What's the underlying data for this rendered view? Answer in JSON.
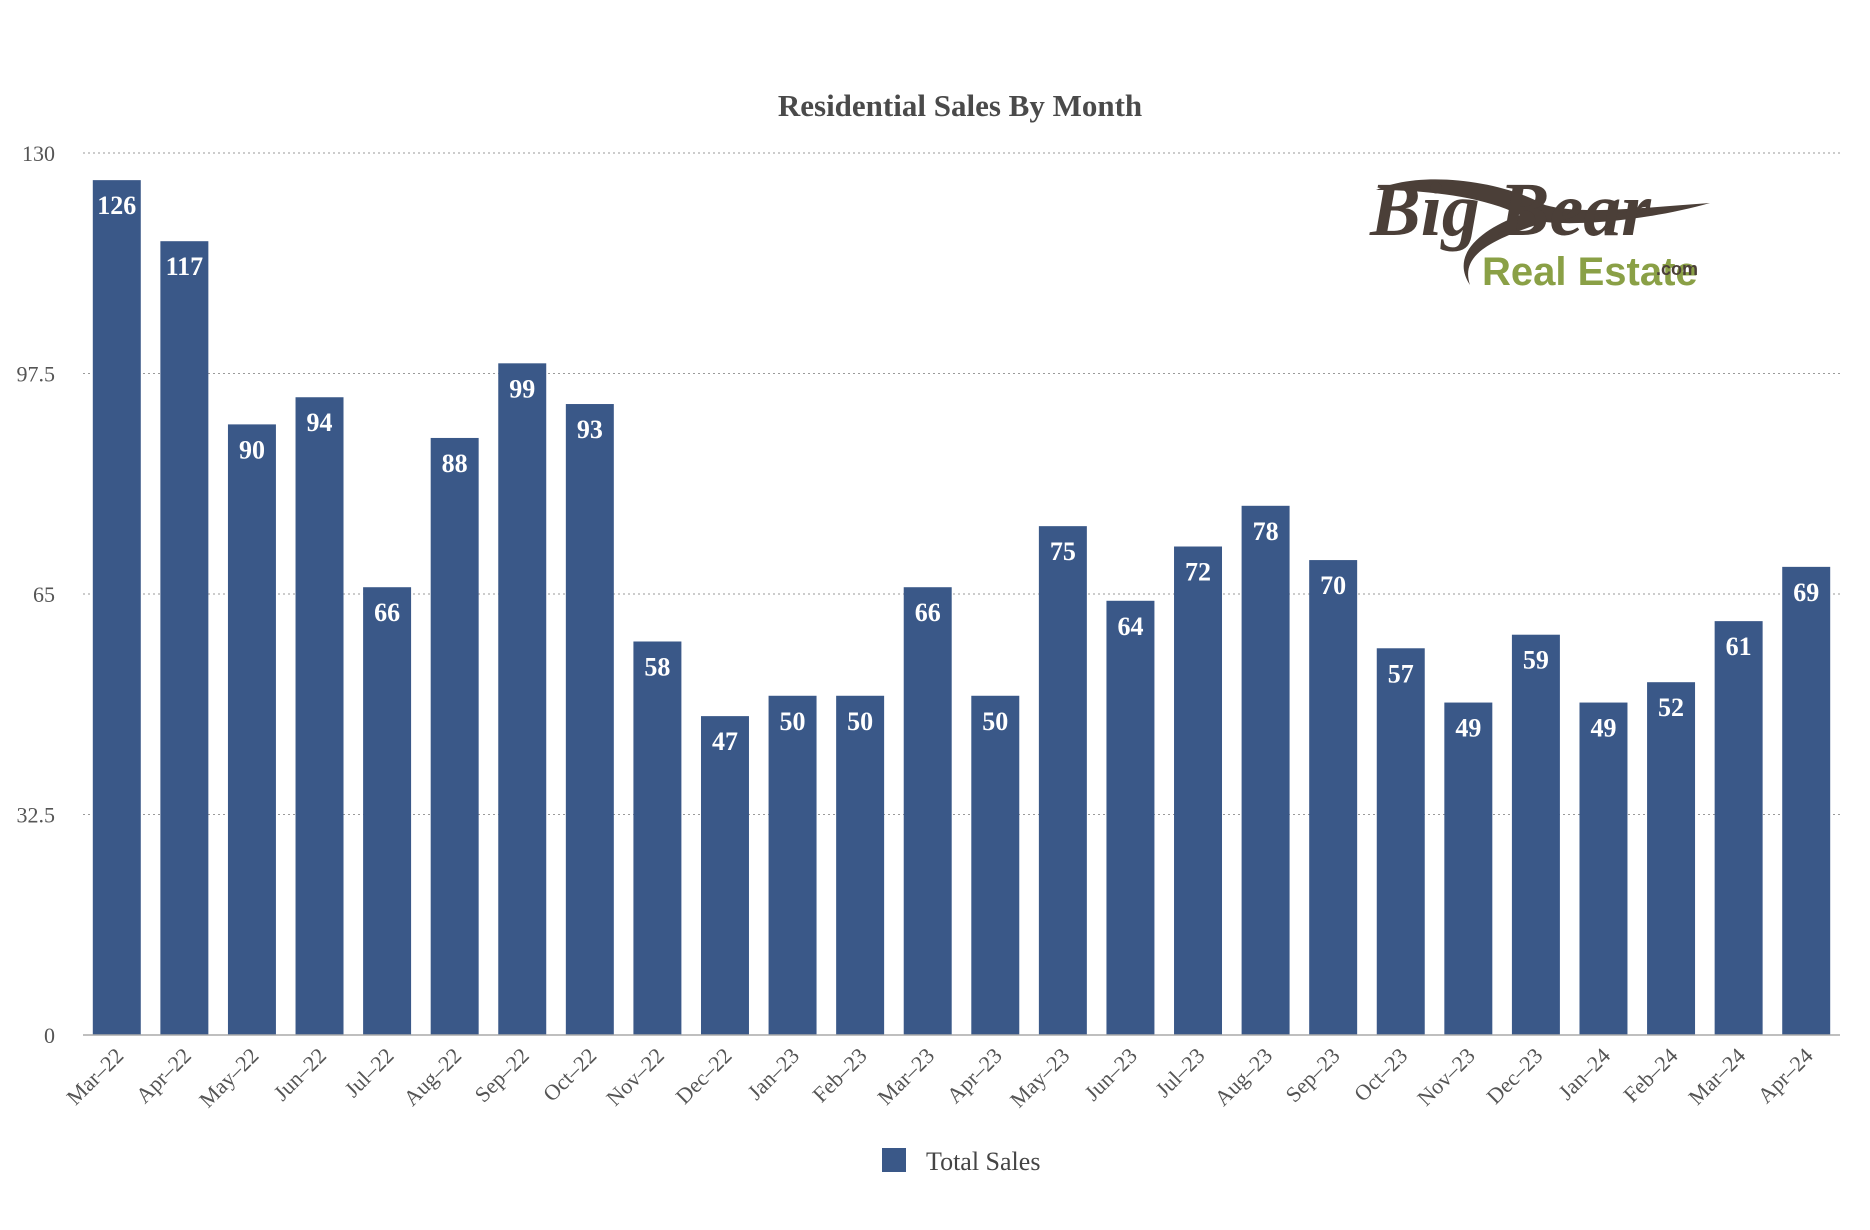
{
  "chart_data": {
    "type": "bar",
    "title": "Residential Sales By Month",
    "categories": [
      "Mar–22",
      "Apr–22",
      "May–22",
      "Jun–22",
      "Jul–22",
      "Aug–22",
      "Sep–22",
      "Oct–22",
      "Nov–22",
      "Dec–22",
      "Jan–23",
      "Feb–23",
      "Mar–23",
      "Apr–23",
      "May–23",
      "Jun–23",
      "Jul–23",
      "Aug–23",
      "Sep–23",
      "Oct–23",
      "Nov–23",
      "Dec–23",
      "Jan–24",
      "Feb–24",
      "Mar–24",
      "Apr–24"
    ],
    "series": [
      {
        "name": "Total Sales",
        "values": [
          126,
          117,
          90,
          94,
          66,
          88,
          99,
          93,
          58,
          47,
          50,
          50,
          66,
          50,
          75,
          64,
          72,
          78,
          70,
          57,
          49,
          59,
          49,
          52,
          61,
          69
        ]
      }
    ],
    "xlabel": "",
    "ylabel": "",
    "ylim": [
      0,
      130
    ],
    "yticks": [
      "0",
      "32.5",
      "65",
      "97.5",
      "130"
    ],
    "grid": true,
    "legend_position": "bottom-center",
    "bar_color": "#3a5888",
    "data_labels": true
  },
  "logo": {
    "line1": "Big Bear",
    "line2": "Real Estate",
    "suffix": ".com",
    "brown": "#4b3f38",
    "green": "#8aa046"
  }
}
